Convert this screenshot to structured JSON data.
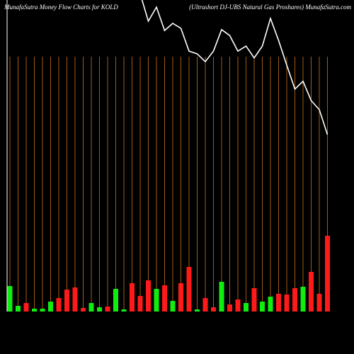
{
  "chart_data": {
    "type": "bar",
    "title": "MunafaSutra  Money Flow  Charts for KOLD",
    "subtitle": "(Ultrashort DJ-UBS Natural Gas Proshares) MunafaSutra.com",
    "values": [
      36,
      8,
      12,
      4,
      4,
      14,
      19,
      31,
      34,
      5,
      12,
      6,
      7,
      32,
      3,
      40,
      22,
      44,
      32,
      37,
      15,
      40,
      63,
      3,
      19,
      6,
      42,
      10,
      17,
      12,
      33,
      14,
      21,
      25,
      24,
      33,
      35,
      56,
      25,
      107
    ],
    "colors": [
      "#10ee10",
      "#10ee10",
      "#ff1a1a",
      "#10ee10",
      "#10ee10",
      "#10ee10",
      "#ff1a1a",
      "#ff1a1a",
      "#ff1a1a",
      "#ff1a1a",
      "#10ee10",
      "#10ee10",
      "#ff1a1a",
      "#10ee10",
      "#10ee10",
      "#ff1a1a",
      "#ff1a1a",
      "#ff1a1a",
      "#10ee10",
      "#ff1a1a",
      "#10ee10",
      "#ff1a1a",
      "#ff1a1a",
      "#10ee10",
      "#ff1a1a",
      "#ff1a1a",
      "#10ee10",
      "#ff1a1a",
      "#ff1a1a",
      "#10ee10",
      "#ff1a1a",
      "#10ee10",
      "#10ee10",
      "#ff1a1a",
      "#ff1a1a",
      "#ff1a1a",
      "#10ee10",
      "#ff1a1a",
      "#ff1a1a",
      "#ff1a1a"
    ],
    "ylim": [
      0,
      440
    ],
    "price": {
      "color": "#ffffff",
      "ylim": [
        0,
        100
      ],
      "values": [
        null,
        null,
        null,
        null,
        null,
        null,
        null,
        null,
        null,
        null,
        null,
        null,
        null,
        null,
        null,
        null,
        102,
        93.2,
        97.7,
        90.2,
        92.5,
        90.9,
        83.6,
        82.7,
        80.2,
        83.6,
        90.5,
        88.6,
        83.6,
        85.2,
        81.4,
        85.2,
        94.1,
        87,
        79.1,
        71.4,
        73.9,
        67.7,
        64.8,
        56.8
      ]
    },
    "grid_color": "#c8741e"
  }
}
